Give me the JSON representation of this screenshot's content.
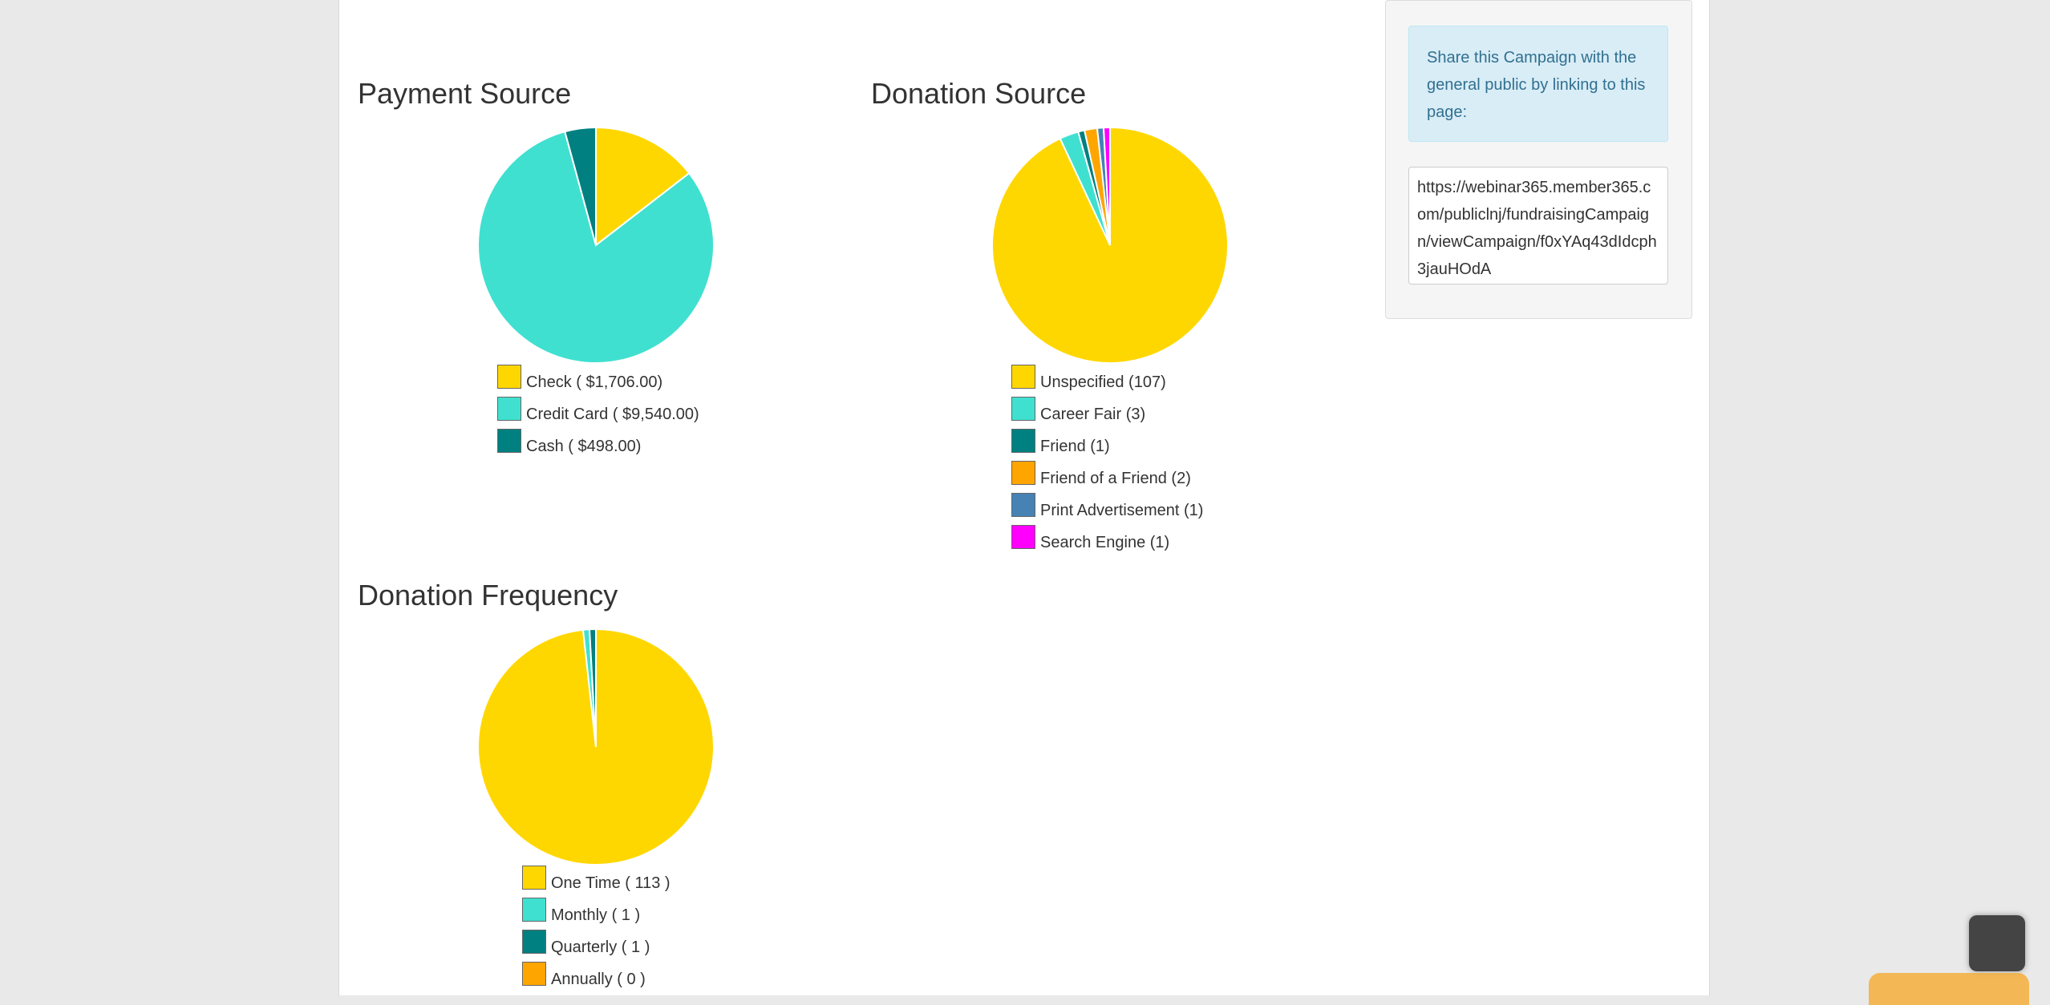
{
  "charts": {
    "payment": {
      "title": "Payment Source",
      "legend": [
        {
          "label": "Check ( $1,706.00)",
          "color": "#ffd700"
        },
        {
          "label": "Credit Card ( $9,540.00)",
          "color": "#40e0d0"
        },
        {
          "label": "Cash ( $498.00)",
          "color": "#008080"
        }
      ]
    },
    "donation_source": {
      "title": "Donation Source",
      "legend": [
        {
          "label": "Unspecified (107)",
          "color": "#ffd700"
        },
        {
          "label": "Career Fair (3)",
          "color": "#40e0d0"
        },
        {
          "label": "Friend (1)",
          "color": "#008080"
        },
        {
          "label": "Friend of a Friend (2)",
          "color": "#ffa500"
        },
        {
          "label": "Print Advertisement (1)",
          "color": "#4682b4"
        },
        {
          "label": "Search Engine (1)",
          "color": "#ff00ff"
        }
      ]
    },
    "frequency": {
      "title": "Donation Frequency",
      "legend": [
        {
          "label": "One Time ( 113 )",
          "color": "#ffd700"
        },
        {
          "label": "Monthly ( 1 )",
          "color": "#40e0d0"
        },
        {
          "label": "Quarterly ( 1 )",
          "color": "#008080"
        },
        {
          "label": "Annually ( 0 )",
          "color": "#ffa500"
        }
      ]
    }
  },
  "chart_data": [
    {
      "type": "pie",
      "title": "Payment Source",
      "categories": [
        "Check",
        "Credit Card",
        "Cash"
      ],
      "values": [
        1706.0,
        9540.0,
        498.0
      ],
      "colors": [
        "#ffd700",
        "#40e0d0",
        "#008080"
      ]
    },
    {
      "type": "pie",
      "title": "Donation Source",
      "categories": [
        "Unspecified",
        "Career Fair",
        "Friend",
        "Friend of a Friend",
        "Print Advertisement",
        "Search Engine"
      ],
      "values": [
        107,
        3,
        1,
        2,
        1,
        1
      ],
      "colors": [
        "#ffd700",
        "#40e0d0",
        "#008080",
        "#ffa500",
        "#4682b4",
        "#ff00ff"
      ]
    },
    {
      "type": "pie",
      "title": "Donation Frequency",
      "categories": [
        "One Time",
        "Monthly",
        "Quarterly",
        "Annually"
      ],
      "values": [
        113,
        1,
        1,
        0
      ],
      "colors": [
        "#ffd700",
        "#40e0d0",
        "#008080",
        "#ffa500"
      ]
    }
  ],
  "share": {
    "message": "Share this Campaign with the general public by linking to this page:",
    "url": "https://webinar365.member365.com/publiclnj/fundraisingCampaign/viewCampaign/f0xYAq43dIdcph3jauHOdA"
  }
}
